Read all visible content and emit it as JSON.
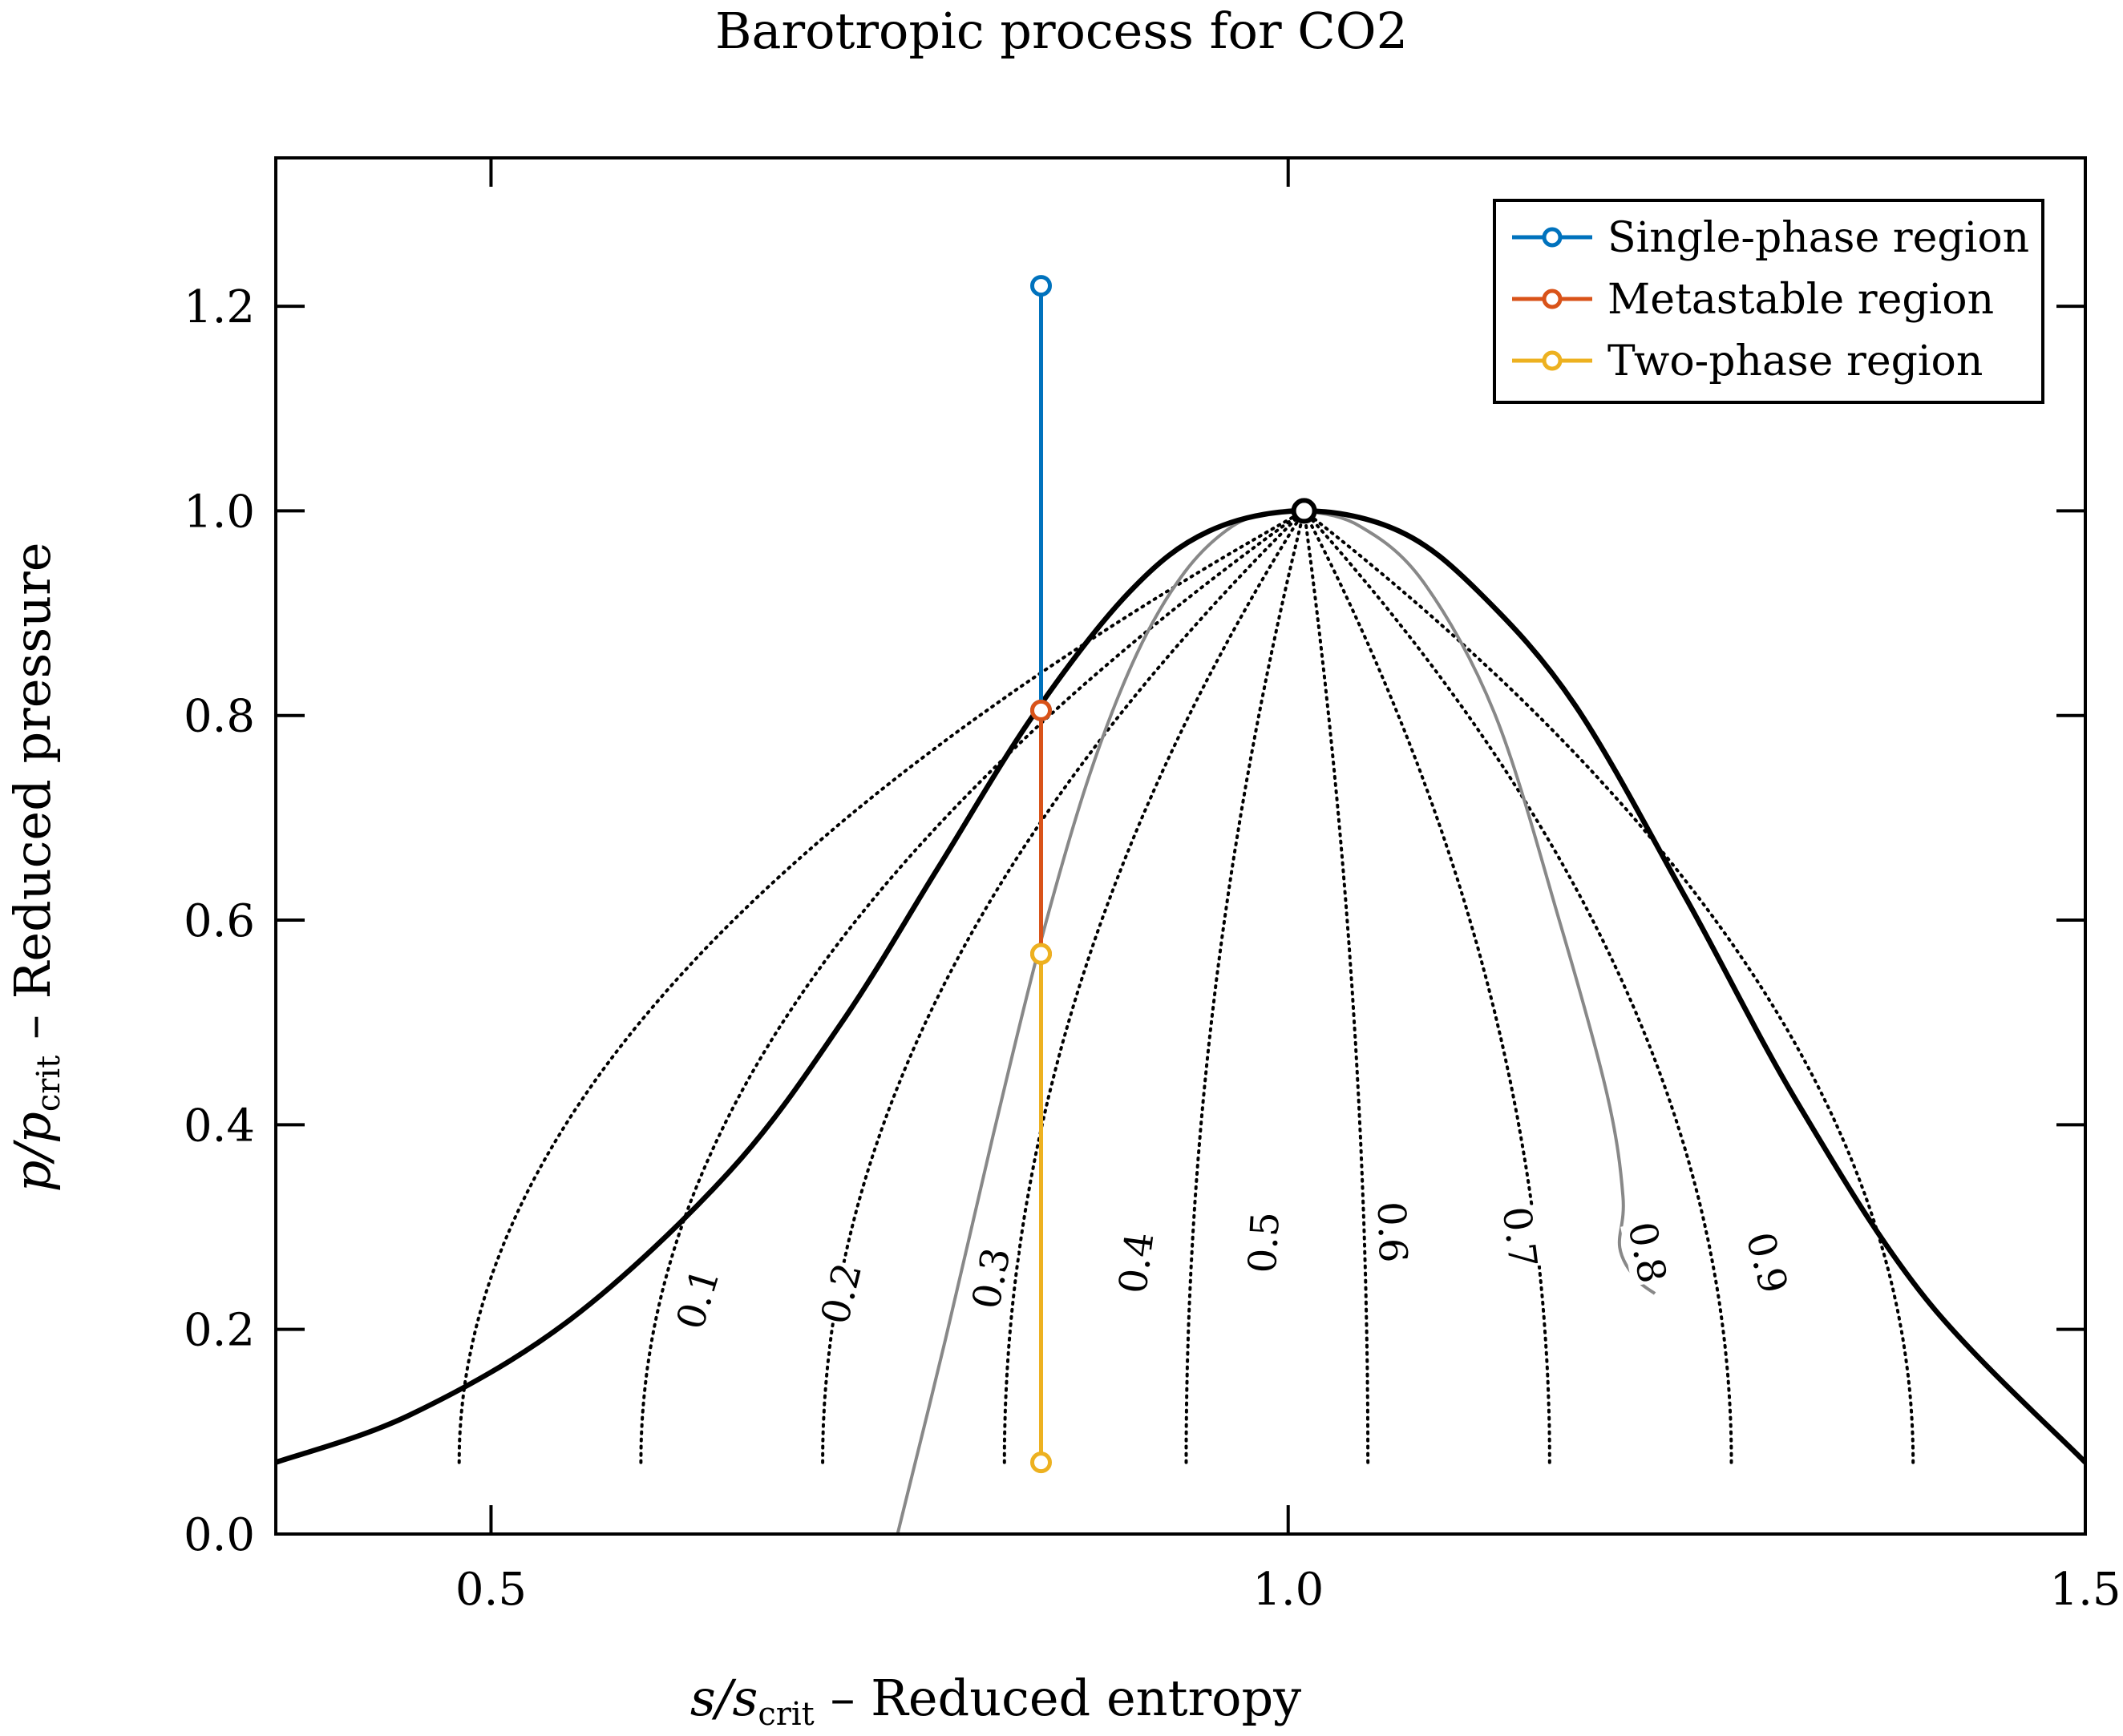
{
  "chart_data": {
    "type": "line",
    "title": "Barotropic process for CO2",
    "xlabel": {
      "main": "s/s",
      "sub": "crit",
      "rest": " – Reduced entropy"
    },
    "ylabel": {
      "main": "p/p",
      "sub": "crit",
      "rest": " – Reduced pressure"
    },
    "xlim": [
      0.365,
      1.5
    ],
    "ylim": [
      0.0,
      1.345
    ],
    "xticks": [
      0.5,
      1.0,
      1.5
    ],
    "xtick_labels": [
      "0.5",
      "1.0",
      "1.5"
    ],
    "yticks": [
      0.0,
      0.2,
      0.4,
      0.6,
      0.8,
      1.0,
      1.2
    ],
    "ytick_labels": [
      "0.0",
      "0.2",
      "0.4",
      "0.6",
      "0.8",
      "1.0",
      "1.2"
    ],
    "grid": false,
    "legend_position": "top-right",
    "critical_point": {
      "s": 1.01,
      "p": 1.0
    },
    "saturation_dome": {
      "color": "#000000",
      "s": [
        0.365,
        0.45,
        0.55,
        0.65,
        0.72,
        0.78,
        0.84,
        0.9,
        0.95,
        1.01,
        1.07,
        1.12,
        1.18,
        1.25,
        1.32,
        1.4,
        1.5
      ],
      "p": [
        0.07,
        0.117,
        0.21,
        0.355,
        0.5,
        0.65,
        0.8,
        0.92,
        0.98,
        1.0,
        0.98,
        0.92,
        0.81,
        0.62,
        0.42,
        0.23,
        0.07
      ]
    },
    "quality_lines": [
      {
        "q": "0.1",
        "bottom_s": 0.48,
        "label_s": 0.63,
        "label_p": 0.23
      },
      {
        "q": "0.2",
        "bottom_s": 0.594,
        "label_s": 0.72,
        "label_p": 0.235
      },
      {
        "q": "0.3",
        "bottom_s": 0.708,
        "label_s": 0.814,
        "label_p": 0.25
      },
      {
        "q": "0.4",
        "bottom_s": 0.822,
        "label_s": 0.905,
        "label_p": 0.265
      },
      {
        "q": "0.5",
        "bottom_s": 0.936,
        "label_s": 0.985,
        "label_p": 0.285
      },
      {
        "q": "0.6",
        "bottom_s": 1.05,
        "label_s": 1.065,
        "label_p": 0.295
      },
      {
        "q": "0.7",
        "bottom_s": 1.164,
        "label_s": 1.145,
        "label_p": 0.29
      },
      {
        "q": "0.8",
        "bottom_s": 1.278,
        "label_s": 1.225,
        "label_p": 0.275
      },
      {
        "q": "0.9",
        "bottom_s": 1.392,
        "label_s": 1.3,
        "label_p": 0.265
      }
    ],
    "metastable_limit": {
      "color": "#888888",
      "s": [
        0.755,
        0.785,
        0.815,
        0.845,
        0.875,
        0.905,
        0.935,
        0.965,
        0.99,
        1.01,
        1.045,
        1.085,
        1.13,
        1.17,
        1.2,
        1.21,
        1.208,
        1.218,
        1.23
      ],
      "p": [
        0.0,
        0.19,
        0.39,
        0.58,
        0.74,
        0.86,
        0.94,
        0.985,
        0.998,
        1.0,
        0.985,
        0.93,
        0.8,
        0.6,
        0.43,
        0.33,
        0.28,
        0.25,
        0.235
      ]
    },
    "series": [
      {
        "name": "Single-phase region",
        "color": "#0072bd",
        "s": [
          0.845,
          0.845
        ],
        "p": [
          1.22,
          0.805
        ]
      },
      {
        "name": "Metastable region",
        "color": "#d95319",
        "s": [
          0.845,
          0.845
        ],
        "p": [
          0.805,
          0.567
        ]
      },
      {
        "name": "Two-phase region",
        "color": "#edb120",
        "s": [
          0.845,
          0.845
        ],
        "p": [
          0.567,
          0.07
        ]
      }
    ]
  }
}
